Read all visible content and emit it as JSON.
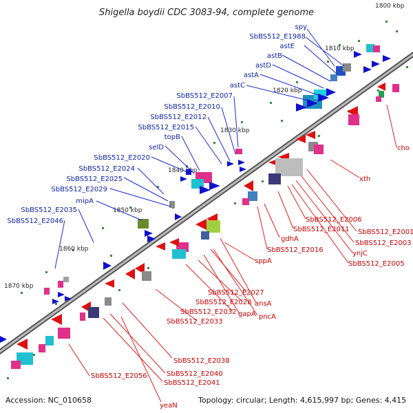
{
  "title": "Shigella boydii CDC 3083-94, complete genome",
  "footer": {
    "accession": "Accession: NC_010658",
    "summary": "Topology: circular; Length: 4,615,997 bp; Genes: 4,415"
  },
  "kbp_labels": [
    "1800 kbp",
    "1810 kbp",
    "1820 kbp",
    "1830 kbp",
    "1840 kbp",
    "1850 kbp",
    "1860 kbp",
    "1870 kbp"
  ],
  "labels_forward": [
    "spy",
    "SbBS512_E1988",
    "astE",
    "astB",
    "astD",
    "astA",
    "astC",
    "SbBS512_E2007",
    "SbBS512_E2010",
    "SbBS512_E2012",
    "SbBS512_E2015",
    "topB",
    "selD",
    "SbBS512_E2020",
    "SbBS512_E2024",
    "SbBS512_E2025",
    "SbBS512_E2029",
    "mipA",
    "SbBS512_E2035",
    "SbBS512_E2046"
  ],
  "labels_reverse": [
    "cho",
    "xth",
    "SbBS512_E2001",
    "SbBS512_E2003",
    "ynjC",
    "SbBS512_E2005",
    "SbBS512_E2006",
    "SbBS512_E2011",
    "gdhA",
    "SbBS512_E2016",
    "sppA",
    "SbBS512_E2027",
    "ansA",
    "SbBS512_E2028",
    "pncA",
    "SbBS512_E2032",
    "gapA",
    "SbBS512_E2033",
    "SbBS512_E2038",
    "SbBS512_E2040",
    "SbBS512_E2056",
    "SbBS512_E2041",
    "yeaN"
  ],
  "colors": {
    "forward": "#1010d0",
    "reverse": "#e01010",
    "backbone": "#888888",
    "forward_label": "#0a1fa8",
    "reverse_label": "#c80000",
    "gc": "#3a8a3a"
  }
}
